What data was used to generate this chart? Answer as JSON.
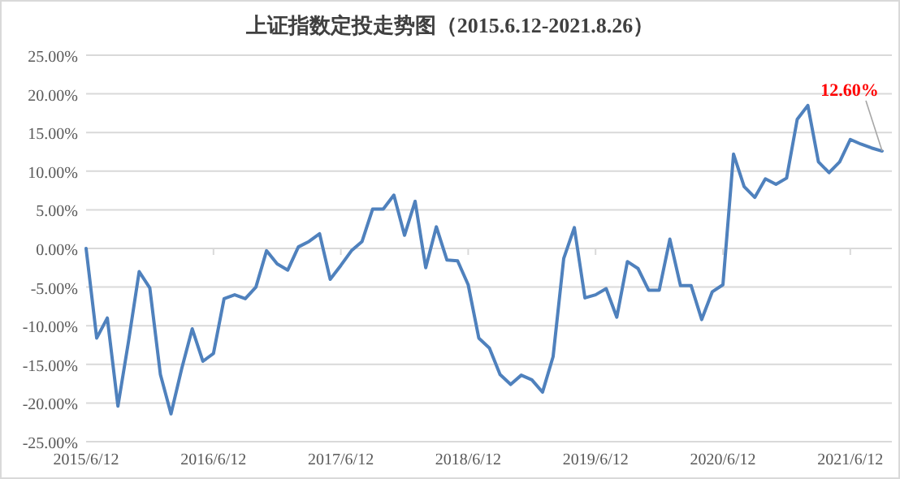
{
  "chart_data": {
    "type": "line",
    "title": "上证指数定投走势图（2015.6.12-2021.8.26）",
    "categories": [
      "2015/6/12",
      null,
      null,
      null,
      null,
      null,
      null,
      null,
      null,
      null,
      null,
      null,
      "2016/6/12",
      null,
      null,
      null,
      null,
      null,
      null,
      null,
      null,
      null,
      null,
      null,
      "2017/6/12",
      null,
      null,
      null,
      null,
      null,
      null,
      null,
      null,
      null,
      null,
      null,
      "2018/6/12",
      null,
      null,
      null,
      null,
      null,
      null,
      null,
      null,
      null,
      null,
      null,
      "2019/6/12",
      null,
      null,
      null,
      null,
      null,
      null,
      null,
      null,
      null,
      null,
      null,
      "2020/6/12",
      null,
      null,
      null,
      null,
      null,
      null,
      null,
      null,
      null,
      null,
      null,
      "2021/6/12",
      null,
      null,
      null
    ],
    "values": [
      0,
      -11.6,
      -9.0,
      -20.4,
      -12,
      -3.0,
      -5.1,
      -16.3,
      -21.4,
      -15.6,
      -10.4,
      -14.6,
      -13.6,
      -6.5,
      -6.0,
      -6.5,
      -5.0,
      -0.3,
      -2.0,
      -2.8,
      0.2,
      0.9,
      1.9,
      -4.0,
      -2.2,
      -0.3,
      0.9,
      5.1,
      5.1,
      6.9,
      1.7,
      6.1,
      -2.5,
      2.8,
      -1.5,
      -1.6,
      -4.7,
      -11.6,
      -12.9,
      -16.3,
      -17.6,
      -16.4,
      -17.0,
      -18.6,
      -14.0,
      -1.3,
      2.7,
      -6.4,
      -6.0,
      -5.2,
      -8.9,
      -1.7,
      -2.6,
      -5.4,
      -5.4,
      1.2,
      -4.8,
      -4.8,
      -9.2,
      -5.6,
      -4.7,
      12.2,
      8.0,
      6.6,
      9.0,
      8.3,
      9.1,
      16.7,
      18.5,
      11.2,
      9.8,
      11.2,
      14.1,
      13.5,
      13.0,
      12.6
    ],
    "color": "#4f81bd",
    "ylim": [
      -25,
      25
    ],
    "yticks": [
      {
        "value": -25,
        "label": "-25.00%"
      },
      {
        "value": -20,
        "label": "-20.00%"
      },
      {
        "value": -15,
        "label": "-15.00%"
      },
      {
        "value": -10,
        "label": "-10.00%"
      },
      {
        "value": -5,
        "label": "-5.00%"
      },
      {
        "value": 0,
        "label": "0.00%"
      },
      {
        "value": 5,
        "label": "5.00%"
      },
      {
        "value": 10,
        "label": "10.00%"
      },
      {
        "value": 15,
        "label": "15.00%"
      },
      {
        "value": 20,
        "label": "20.00%"
      },
      {
        "value": 25,
        "label": "25.00%"
      }
    ],
    "grid": "y",
    "annotations": [
      {
        "text": "12.60%",
        "y": 12.6
      }
    ]
  }
}
